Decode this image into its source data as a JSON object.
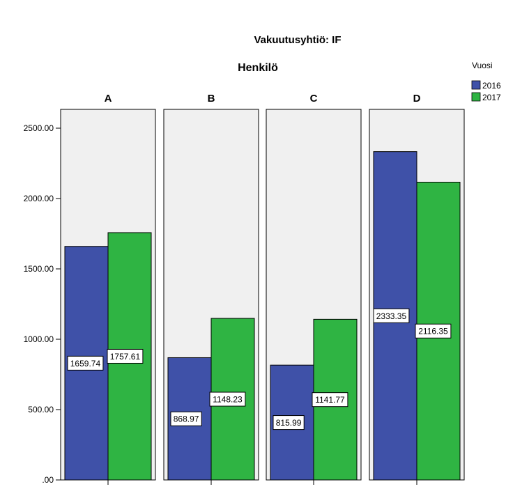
{
  "chart_data": {
    "type": "bar",
    "title": "Vakuutusyhtiö: IF",
    "panel_title": "Henkilö",
    "panels": [
      "A",
      "B",
      "C",
      "D"
    ],
    "series": [
      {
        "name": "2016",
        "color": "#3f51a8",
        "values": [
          1659.74,
          868.97,
          815.99,
          2333.35
        ]
      },
      {
        "name": "2017",
        "color": "#2fb443",
        "values": [
          1757.61,
          1148.23,
          1141.77,
          2116.35
        ]
      }
    ],
    "labels": [
      [
        "1659.74",
        "1757.61"
      ],
      [
        "868.97",
        "1148.23"
      ],
      [
        "815.99",
        "1141.77"
      ],
      [
        "2333.35",
        "2116.35"
      ]
    ],
    "legend_title": "Vuosi",
    "legend_position": "top-right",
    "ylim": [
      0,
      2500
    ],
    "yticks": [
      0,
      500,
      1000,
      1500,
      2000,
      2500
    ],
    "ytick_labels": [
      ".00",
      "500.00",
      "1000.00",
      "1500.00",
      "2000.00",
      "2500.00"
    ],
    "panel_background": "#f0f0f0"
  }
}
